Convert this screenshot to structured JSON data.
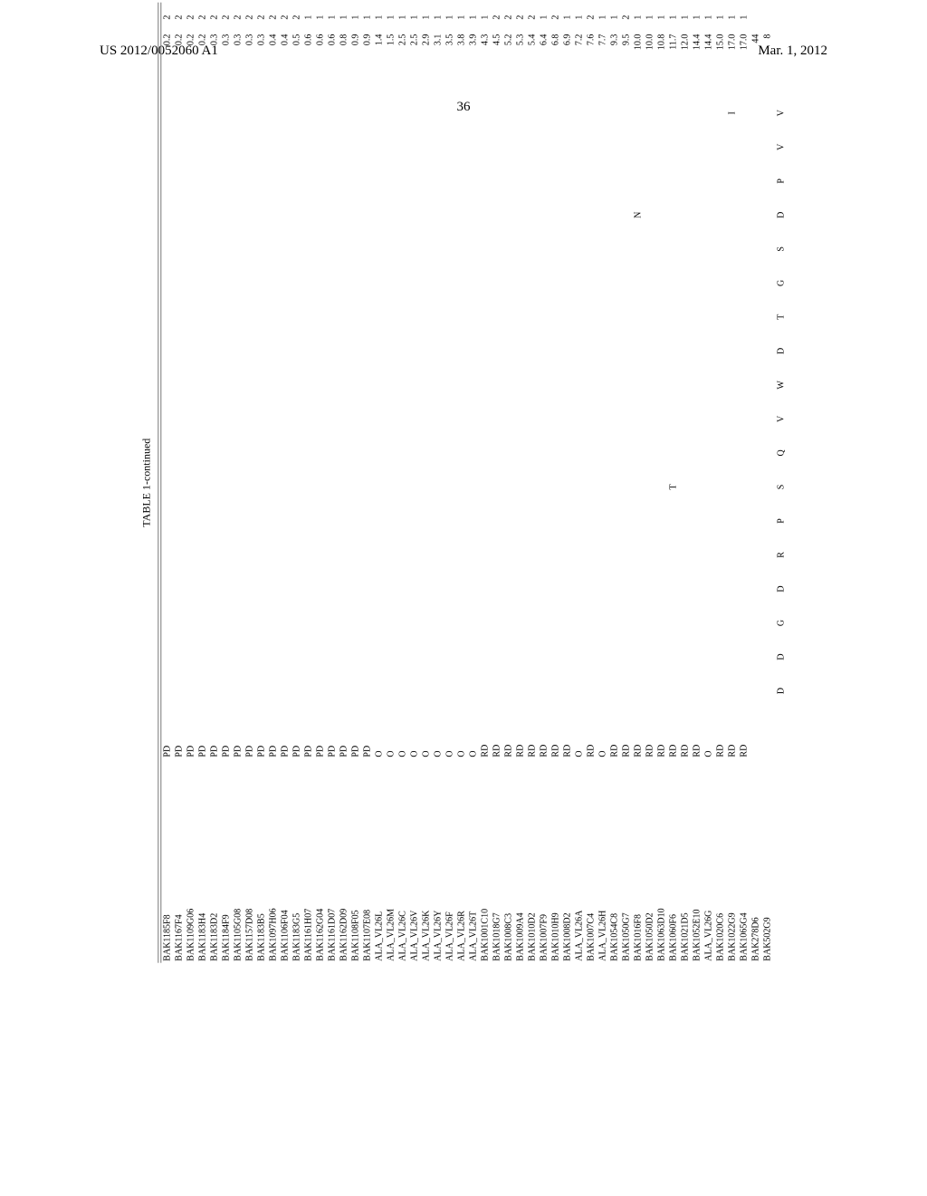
{
  "header": {
    "left": "US 2012/0052060 A1",
    "right": "Mar. 1, 2012",
    "page_number": "36"
  },
  "table": {
    "title": "TABLE 1-continued",
    "colors": {
      "text": "#000000",
      "background": "#ffffff",
      "rule": "#777777"
    },
    "columns_aa_header": [
      "D",
      "D",
      "G",
      "D",
      "R",
      "P",
      "S",
      "Q",
      "V",
      "W",
      "D",
      "T",
      "G",
      "S",
      "D",
      "P",
      "V",
      "V"
    ],
    "rows": [
      {
        "id": "BAK1185F8",
        "src": "PD",
        "mut": [],
        "v1": "0.2",
        "v2": "2"
      },
      {
        "id": "BAK1167F4",
        "src": "PD",
        "mut": [],
        "v1": "0.2",
        "v2": "2"
      },
      {
        "id": "BAK1109G06",
        "src": "PD",
        "mut": [],
        "v1": "0.2",
        "v2": "2"
      },
      {
        "id": "BAK1183H4",
        "src": "PD",
        "mut": [],
        "v1": "0.2",
        "v2": "2"
      },
      {
        "id": "BAK1183D2",
        "src": "PD",
        "mut": [],
        "v1": "0.3",
        "v2": "2"
      },
      {
        "id": "BAK1184F9",
        "src": "PD",
        "mut": [],
        "v1": "0.3",
        "v2": "2"
      },
      {
        "id": "BAK1105G08",
        "src": "PD",
        "mut": [],
        "v1": "0.3",
        "v2": "2"
      },
      {
        "id": "BAK1157D08",
        "src": "PD",
        "mut": [],
        "v1": "0.3",
        "v2": "2"
      },
      {
        "id": "BAK1183B5",
        "src": "PD",
        "mut": [],
        "v1": "0.3",
        "v2": "2"
      },
      {
        "id": "BAK1097H06",
        "src": "PD",
        "mut": [],
        "v1": "0.4",
        "v2": "2"
      },
      {
        "id": "BAK1106F04",
        "src": "PD",
        "mut": [],
        "v1": "0.4",
        "v2": "2"
      },
      {
        "id": "BAK1183G5",
        "src": "PD",
        "mut": [],
        "v1": "0.5",
        "v2": "2"
      },
      {
        "id": "BAK1161H07",
        "src": "PD",
        "mut": [],
        "v1": "0.6",
        "v2": "1"
      },
      {
        "id": "BAK1162G04",
        "src": "PD",
        "mut": [],
        "v1": "0.6",
        "v2": "1"
      },
      {
        "id": "BAK1161D07",
        "src": "PD",
        "mut": [],
        "v1": "0.6",
        "v2": "1"
      },
      {
        "id": "BAK1162D09",
        "src": "PD",
        "mut": [],
        "v1": "0.8",
        "v2": "1"
      },
      {
        "id": "BAK1108F05",
        "src": "PD",
        "mut": [],
        "v1": "0.9",
        "v2": "1"
      },
      {
        "id": "BAK1107E08",
        "src": "PD",
        "mut": [],
        "v1": "0.9",
        "v2": "1"
      },
      {
        "id": "ALA_VL26L",
        "src": "O",
        "mut": [],
        "v1": "1.4",
        "v2": "1"
      },
      {
        "id": "ALA_VL26M",
        "src": "O",
        "mut": [],
        "v1": "1.5",
        "v2": "1"
      },
      {
        "id": "ALA_VL26C",
        "src": "O",
        "mut": [],
        "v1": "2.5",
        "v2": "1"
      },
      {
        "id": "ALA_VL26V",
        "src": "O",
        "mut": [],
        "v1": "2.5",
        "v2": "1"
      },
      {
        "id": "ALA_VL26K",
        "src": "O",
        "mut": [],
        "v1": "2.9",
        "v2": "1"
      },
      {
        "id": "ALA_VL26Y",
        "src": "O",
        "mut": [],
        "v1": "3.1",
        "v2": "1"
      },
      {
        "id": "ALA_VL26F",
        "src": "O",
        "mut": [],
        "v1": "3.5",
        "v2": "1"
      },
      {
        "id": "ALA_VL26R",
        "src": "O",
        "mut": [],
        "v1": "3.8",
        "v2": "1"
      },
      {
        "id": "ALA_VL26T",
        "src": "O",
        "mut": [],
        "v1": "3.9",
        "v2": "1"
      },
      {
        "id": "BAK1001C10",
        "src": "RD",
        "mut": [],
        "v1": "4.3",
        "v2": "1"
      },
      {
        "id": "BAK1018G7",
        "src": "RD",
        "mut": [],
        "v1": "4.5",
        "v2": "2"
      },
      {
        "id": "BAK1008C3",
        "src": "RD",
        "mut": [],
        "v1": "5.2",
        "v2": "2"
      },
      {
        "id": "BAK1009A4",
        "src": "RD",
        "mut": [],
        "v1": "5.3",
        "v2": "2"
      },
      {
        "id": "BAK1010D2",
        "src": "RD",
        "mut": [],
        "v1": "5.4",
        "v2": "2"
      },
      {
        "id": "BAK1007F9",
        "src": "RD",
        "mut": [],
        "v1": "6.4",
        "v2": "1"
      },
      {
        "id": "BAK1010H9",
        "src": "RD",
        "mut": [],
        "v1": "6.8",
        "v2": "2"
      },
      {
        "id": "BAK1008D2",
        "src": "RD",
        "mut": [],
        "v1": "6.9",
        "v2": "1"
      },
      {
        "id": "ALA_VL26A",
        "src": "O",
        "mut": [],
        "v1": "7.2",
        "v2": "1"
      },
      {
        "id": "BAK1007C4",
        "src": "RD",
        "mut": [],
        "v1": "7.6",
        "v2": "2"
      },
      {
        "id": "ALA_VL26H",
        "src": "O",
        "mut": [],
        "v1": "7.7",
        "v2": "1"
      },
      {
        "id": "BAK1054C8",
        "src": "RD",
        "mut": [],
        "v1": "9.3",
        "v2": "1"
      },
      {
        "id": "BAK1050G7",
        "src": "RD",
        "mut": [],
        "v1": "9.5",
        "v2": "2"
      },
      {
        "id": "BAK1016F8",
        "src": "RD",
        "mut": [
          {
            "pos": 14,
            "aa": "N"
          }
        ],
        "v1": "10.0",
        "v2": "1"
      },
      {
        "id": "BAK1050D2",
        "src": "RD",
        "mut": [],
        "v1": "10.0",
        "v2": "1"
      },
      {
        "id": "BAK1063D10",
        "src": "RD",
        "mut": [],
        "v1": "10.8",
        "v2": "1"
      },
      {
        "id": "BAK1060F6",
        "src": "RD",
        "mut": [
          {
            "pos": 6,
            "aa": "T"
          }
        ],
        "v1": "11.7",
        "v2": "1"
      },
      {
        "id": "BAK1021D5",
        "src": "RD",
        "mut": [],
        "v1": "12.0",
        "v2": "1"
      },
      {
        "id": "BAK1052E10",
        "src": "RD",
        "mut": [],
        "v1": "14.4",
        "v2": "1"
      },
      {
        "id": "ALA_VL26G",
        "src": "O",
        "mut": [],
        "v1": "14.4",
        "v2": "1"
      },
      {
        "id": "BAK1020C6",
        "src": "RD",
        "mut": [],
        "v1": "15.0",
        "v2": "1"
      },
      {
        "id": "BAK1022G9",
        "src": "RD",
        "mut": [
          {
            "pos": 17,
            "aa": "I"
          }
        ],
        "v1": "17.0",
        "v2": "1"
      },
      {
        "id": "BAK1065G4",
        "src": "RD",
        "mut": [],
        "v1": "17.0",
        "v2": "1"
      },
      {
        "id": "BAK278D6",
        "src": "",
        "mut": [],
        "v1": "44",
        "v2": ""
      },
      {
        "id": "BAK502G9",
        "src": "",
        "mut": [],
        "v1": "8",
        "v2": ""
      }
    ]
  }
}
